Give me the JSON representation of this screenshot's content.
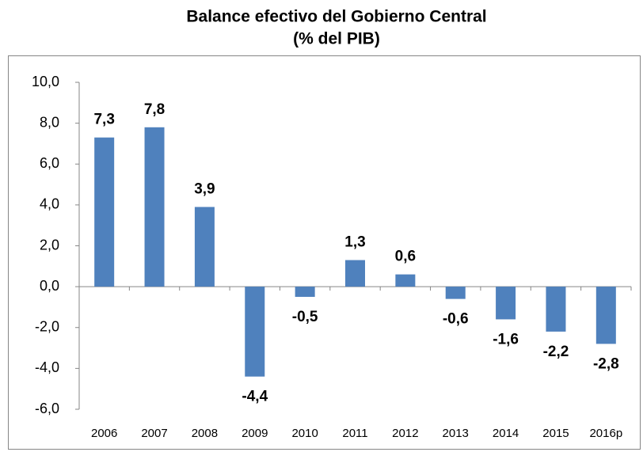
{
  "chart_data": {
    "type": "bar",
    "title": "Balance efectivo del Gobierno Central",
    "subtitle": "(% del PIB)",
    "categories": [
      "2006",
      "2007",
      "2008",
      "2009",
      "2010",
      "2011",
      "2012",
      "2013",
      "2014",
      "2015",
      "2016p"
    ],
    "values": [
      7.3,
      7.8,
      3.9,
      -4.4,
      -0.5,
      1.3,
      0.6,
      -0.6,
      -1.6,
      -2.2,
      -2.8
    ],
    "value_labels": [
      "7,3",
      "7,8",
      "3,9",
      "-4,4",
      "-0,5",
      "1,3",
      "0,6",
      "-0,6",
      "-1,6",
      "-2,2",
      "-2,8"
    ],
    "color": "#4f81bd",
    "ylim": [
      -6,
      10
    ],
    "yticks": [
      {
        "value": -6,
        "label": "-6,0"
      },
      {
        "value": -4,
        "label": "-4,0"
      },
      {
        "value": -2,
        "label": "-2,0"
      },
      {
        "value": 0,
        "label": "0,0"
      },
      {
        "value": 2,
        "label": "2,0"
      },
      {
        "value": 4,
        "label": "4,0"
      },
      {
        "value": 6,
        "label": "6,0"
      },
      {
        "value": 8,
        "label": "8,0"
      },
      {
        "value": 10,
        "label": "10,0"
      }
    ],
    "grid": false
  }
}
